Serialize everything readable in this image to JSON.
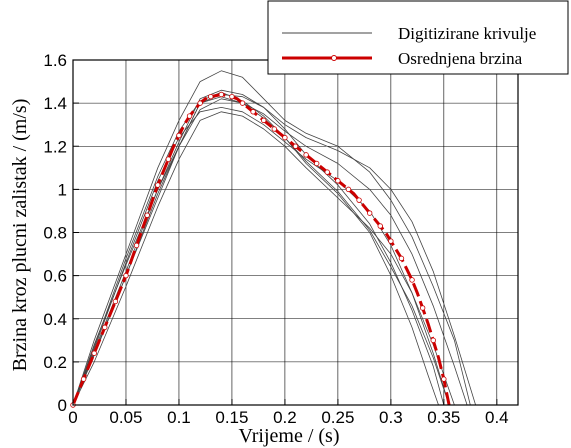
{
  "chart_data": {
    "type": "line",
    "xlabel": "Vrijeme / (s)",
    "ylabel": "Brzina kroz plucni zalistak / (m/s)",
    "xlim": [
      0,
      0.42
    ],
    "ylim": [
      0,
      1.6
    ],
    "xticks": [
      0,
      0.05,
      0.1,
      0.15,
      0.2,
      0.25,
      0.3,
      0.35,
      0.4
    ],
    "xtick_labels": [
      "0",
      "0.05",
      "0.1",
      "0.15",
      "0.2",
      "0.25",
      "0.3",
      "0.35",
      "0.4"
    ],
    "yticks": [
      0,
      0.2,
      0.4,
      0.6,
      0.8,
      1.0,
      1.2,
      1.4,
      1.6
    ],
    "ytick_labels": [
      "0",
      "0.2",
      "0.4",
      "0.6",
      "0.8",
      "1",
      "1.2",
      "1.4",
      "1.6"
    ],
    "grid": true,
    "legend_position": "top-right",
    "legend": [
      "Digitizirane krivulje",
      "Osrednjena brzina"
    ],
    "colors": {
      "average": "#cc0000",
      "digitized": "#444444",
      "marker_fill": "#ffffff"
    },
    "series": [
      {
        "name": "Digitizirane krivulje",
        "role": "digitized",
        "x": [
          0,
          0.02,
          0.05,
          0.08,
          0.1,
          0.12,
          0.14,
          0.16,
          0.18,
          0.2,
          0.22,
          0.25,
          0.28,
          0.3,
          0.32,
          0.34,
          0.36,
          0.375
        ],
        "y": [
          0,
          0.3,
          0.7,
          1.1,
          1.32,
          1.5,
          1.55,
          1.52,
          1.42,
          1.32,
          1.26,
          1.2,
          1.08,
          0.95,
          0.78,
          0.55,
          0.3,
          0
        ]
      },
      {
        "role": "digitized",
        "x": [
          0,
          0.02,
          0.05,
          0.08,
          0.1,
          0.12,
          0.14,
          0.16,
          0.18,
          0.2,
          0.22,
          0.25,
          0.28,
          0.3,
          0.32,
          0.34,
          0.36,
          0.38
        ],
        "y": [
          0,
          0.28,
          0.65,
          1.0,
          1.2,
          1.4,
          1.44,
          1.43,
          1.38,
          1.3,
          1.24,
          1.18,
          1.1,
          1.0,
          0.85,
          0.62,
          0.32,
          0
        ]
      },
      {
        "role": "digitized",
        "x": [
          0,
          0.02,
          0.05,
          0.08,
          0.1,
          0.12,
          0.14,
          0.16,
          0.18,
          0.2,
          0.22,
          0.25,
          0.28,
          0.3,
          0.32,
          0.34,
          0.35
        ],
        "y": [
          0,
          0.25,
          0.62,
          1.0,
          1.22,
          1.42,
          1.46,
          1.44,
          1.38,
          1.28,
          1.16,
          1.02,
          0.84,
          0.66,
          0.44,
          0.18,
          0
        ]
      },
      {
        "role": "digitized",
        "x": [
          0,
          0.02,
          0.05,
          0.08,
          0.1,
          0.12,
          0.14,
          0.16,
          0.18,
          0.2,
          0.22,
          0.25,
          0.28,
          0.3,
          0.32,
          0.335,
          0.345
        ],
        "y": [
          0,
          0.24,
          0.6,
          0.96,
          1.2,
          1.4,
          1.43,
          1.4,
          1.33,
          1.24,
          1.12,
          0.98,
          0.8,
          0.6,
          0.36,
          0.14,
          0
        ]
      },
      {
        "role": "digitized",
        "x": [
          0,
          0.02,
          0.05,
          0.08,
          0.1,
          0.12,
          0.14,
          0.16,
          0.18,
          0.2,
          0.22,
          0.25,
          0.28,
          0.3,
          0.32,
          0.34,
          0.355
        ],
        "y": [
          0,
          0.26,
          0.66,
          1.04,
          1.24,
          1.36,
          1.38,
          1.36,
          1.3,
          1.22,
          1.14,
          1.04,
          0.9,
          0.74,
          0.52,
          0.24,
          0
        ]
      },
      {
        "role": "digitized",
        "x": [
          0,
          0.02,
          0.05,
          0.08,
          0.1,
          0.12,
          0.14,
          0.16,
          0.18,
          0.2,
          0.22,
          0.25,
          0.28,
          0.3,
          0.32,
          0.34,
          0.36
        ],
        "y": [
          0,
          0.2,
          0.55,
          0.92,
          1.14,
          1.32,
          1.36,
          1.34,
          1.28,
          1.2,
          1.1,
          0.96,
          0.82,
          0.7,
          0.52,
          0.28,
          0
        ]
      },
      {
        "role": "digitized",
        "x": [
          0,
          0.02,
          0.05,
          0.08,
          0.1,
          0.12,
          0.14,
          0.16,
          0.18,
          0.2,
          0.22,
          0.25,
          0.28,
          0.3,
          0.32,
          0.34,
          0.355
        ],
        "y": [
          0,
          0.27,
          0.68,
          1.06,
          1.27,
          1.41,
          1.45,
          1.41,
          1.34,
          1.24,
          1.13,
          0.99,
          0.81,
          0.64,
          0.46,
          0.22,
          0
        ]
      },
      {
        "role": "digitized",
        "x": [
          0,
          0.02,
          0.05,
          0.08,
          0.1,
          0.12,
          0.14,
          0.16,
          0.18,
          0.2,
          0.22,
          0.25,
          0.28,
          0.3,
          0.32,
          0.34,
          0.36,
          0.372
        ],
        "y": [
          0,
          0.23,
          0.6,
          0.98,
          1.2,
          1.37,
          1.42,
          1.4,
          1.35,
          1.27,
          1.2,
          1.12,
          1.0,
          0.88,
          0.7,
          0.46,
          0.18,
          0
        ]
      },
      {
        "name": "Osrednjena brzina",
        "role": "average",
        "x": [
          0,
          0.005,
          0.01,
          0.015,
          0.02,
          0.025,
          0.03,
          0.035,
          0.04,
          0.045,
          0.05,
          0.055,
          0.06,
          0.065,
          0.07,
          0.075,
          0.08,
          0.085,
          0.09,
          0.095,
          0.1,
          0.105,
          0.11,
          0.115,
          0.12,
          0.125,
          0.13,
          0.135,
          0.14,
          0.145,
          0.15,
          0.155,
          0.16,
          0.165,
          0.17,
          0.175,
          0.18,
          0.185,
          0.19,
          0.195,
          0.2,
          0.205,
          0.21,
          0.215,
          0.22,
          0.225,
          0.23,
          0.235,
          0.24,
          0.245,
          0.25,
          0.255,
          0.26,
          0.265,
          0.27,
          0.275,
          0.28,
          0.285,
          0.29,
          0.295,
          0.3,
          0.305,
          0.31,
          0.315,
          0.32,
          0.325,
          0.33,
          0.335,
          0.34,
          0.345,
          0.35,
          0.355
        ],
        "y": [
          0,
          0.06,
          0.12,
          0.18,
          0.24,
          0.3,
          0.36,
          0.42,
          0.48,
          0.54,
          0.6,
          0.67,
          0.74,
          0.81,
          0.88,
          0.95,
          1.02,
          1.08,
          1.14,
          1.2,
          1.25,
          1.3,
          1.34,
          1.37,
          1.4,
          1.42,
          1.43,
          1.435,
          1.44,
          1.435,
          1.43,
          1.42,
          1.4,
          1.38,
          1.36,
          1.34,
          1.32,
          1.3,
          1.28,
          1.26,
          1.24,
          1.22,
          1.2,
          1.18,
          1.16,
          1.14,
          1.12,
          1.1,
          1.08,
          1.06,
          1.04,
          1.02,
          1.0,
          0.98,
          0.95,
          0.92,
          0.89,
          0.86,
          0.83,
          0.8,
          0.76,
          0.72,
          0.68,
          0.63,
          0.58,
          0.52,
          0.45,
          0.38,
          0.3,
          0.22,
          0.12,
          0
        ]
      }
    ]
  }
}
